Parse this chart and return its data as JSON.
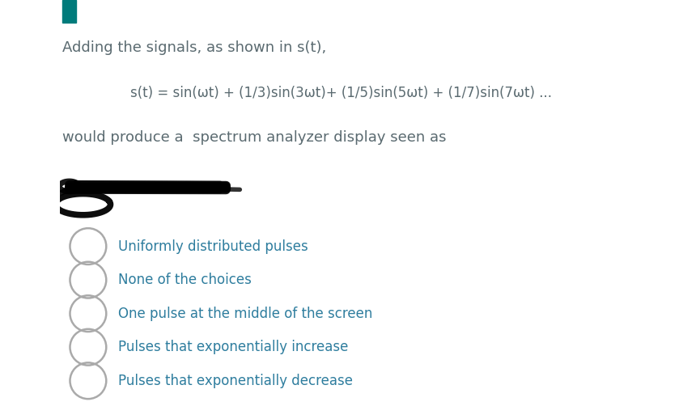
{
  "bg_top": "#dce8ed",
  "bg_left_stripe": "#c8d8de",
  "bg_bottom": "#ffffff",
  "teal_bar_color": "#007b7b",
  "text_color_dark": "#5a6a70",
  "text_color_teal": "#2e7d9e",
  "title_line": "Adding the signals, as shown in s(t),",
  "formula_line": "s(t) = sin(ωt) + (1/3)sin(3ωt)+ (1/5)sin(5ωt) + (1/7)sin(7ωt) ...",
  "subtitle_line": "would produce a  spectrum analyzer display seen as",
  "choices": [
    "Uniformly distributed pulses",
    "None of the choices",
    "One pulse at the middle of the screen",
    "Pulses that exponentially increase",
    "Pulses that exponentially decrease"
  ],
  "fig_width": 8.65,
  "fig_height": 4.97,
  "dpi": 100
}
